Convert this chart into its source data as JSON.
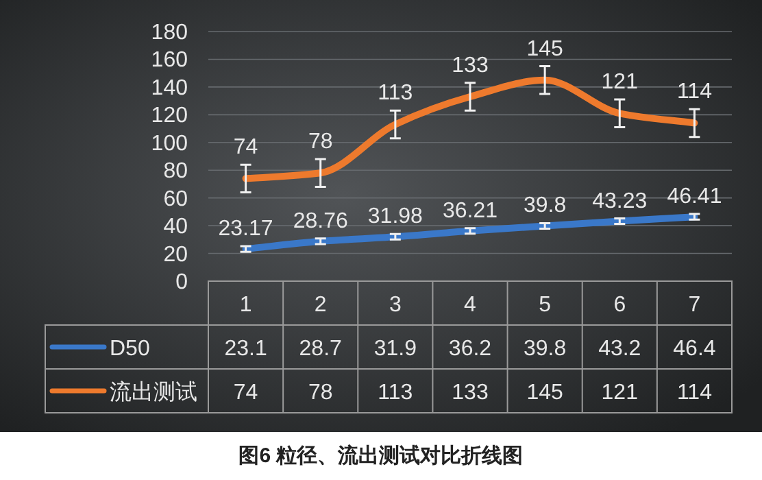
{
  "chart_data": {
    "type": "line",
    "title": "图6 粒径、流出测试对比折线图",
    "categories": [
      "1",
      "2",
      "3",
      "4",
      "5",
      "6",
      "7"
    ],
    "series": [
      {
        "name": "D50",
        "color": "#3a78c9",
        "values": [
          23.17,
          28.76,
          31.98,
          36.21,
          39.8,
          43.23,
          46.41
        ],
        "value_labels": [
          "23.17",
          "28.76",
          "31.98",
          "36.21",
          "39.8",
          "43.23",
          "46.41"
        ],
        "errors": [
          2,
          2,
          2,
          2,
          2,
          2,
          2
        ]
      },
      {
        "name": "流出测试",
        "color": "#ee7a2d",
        "values": [
          74,
          78,
          113,
          133,
          145,
          121,
          114
        ],
        "value_labels": [
          "74",
          "78",
          "113",
          "133",
          "145",
          "121",
          "114"
        ],
        "errors": [
          10,
          10,
          10,
          10,
          10,
          10,
          10
        ]
      }
    ],
    "ylim": [
      0,
      180
    ],
    "yticks": [
      0,
      20,
      40,
      60,
      80,
      100,
      120,
      140,
      160,
      180
    ],
    "grid": "y",
    "legend": "bottom left",
    "annotations": [
      "23.1",
      "28.7",
      "31.9",
      "36.2",
      "39.8",
      "43.2",
      "46.4",
      "74",
      "78",
      "113",
      "133",
      "145",
      "121",
      "114"
    ]
  }
}
